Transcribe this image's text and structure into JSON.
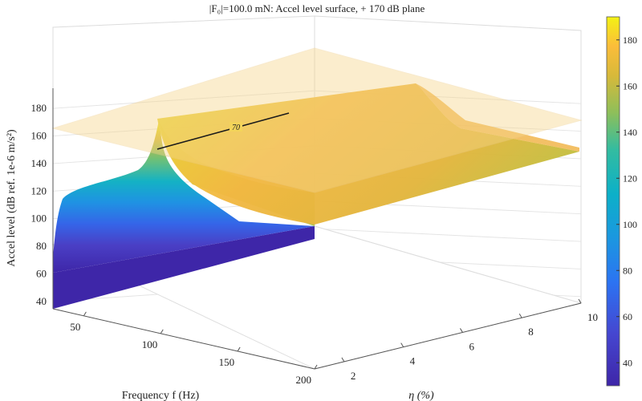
{
  "chart_data": {
    "type": "surface",
    "title": "|F₀|=100.0 mN: Accel level surface, + 170 dB plane",
    "xlabel": "Frequency f (Hz)",
    "ylabel": "η (%)",
    "zlabel": "Accel level (dB ref. 1e-6 m/s²)",
    "x_ticks": [
      "50",
      "100",
      "150",
      "200"
    ],
    "y_ticks": [
      "2",
      "4",
      "6",
      "8",
      "10"
    ],
    "z_ticks": [
      "40",
      "60",
      "80",
      "100",
      "120",
      "140",
      "160",
      "180"
    ],
    "xlim": [
      30,
      200
    ],
    "ylim": [
      1,
      10
    ],
    "zlim": [
      30,
      190
    ],
    "plane_level": 170,
    "contour_label": "70",
    "colorbar": {
      "ticks": [
        "40",
        "60",
        "80",
        "100",
        "120",
        "140",
        "160",
        "180"
      ],
      "range": [
        30,
        190
      ]
    },
    "surface_profile": {
      "f": [
        30,
        32,
        35,
        40,
        45,
        50,
        55,
        60,
        65,
        68,
        70,
        72,
        75,
        80,
        90,
        100,
        120,
        150,
        200
      ],
      "level_at_low_eta": [
        48,
        85,
        98,
        106,
        112,
        116,
        120,
        124,
        133,
        150,
        180,
        166,
        160,
        157,
        154,
        152,
        150,
        149,
        148
      ]
    },
    "grid": true,
    "colormap": "parula"
  }
}
